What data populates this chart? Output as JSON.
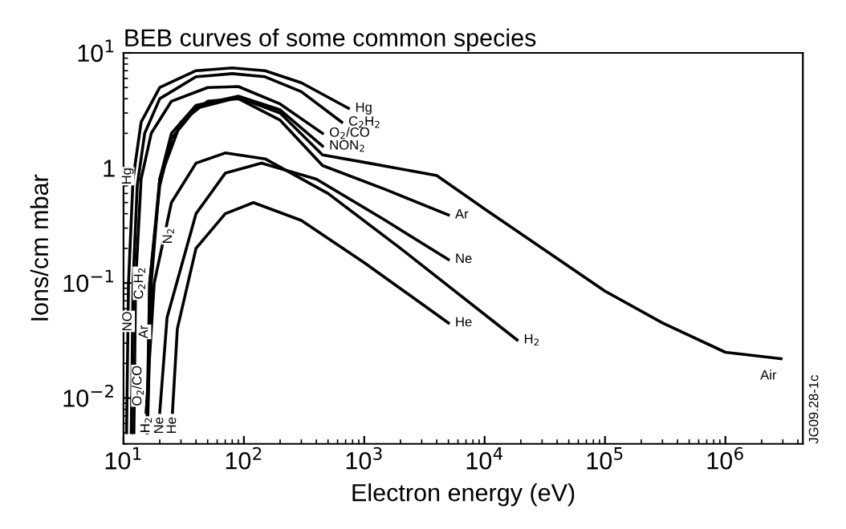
{
  "chart_data": {
    "type": "line",
    "title": "BEB curves of some common species",
    "xlabel": "Electron energy (eV)",
    "ylabel": "Ions/cm mbar",
    "log": "xy",
    "grid": false,
    "legend": false,
    "xlim": [
      10,
      4400000
    ],
    "ylim": [
      0.004,
      10
    ],
    "xticks": [
      {
        "value": 10,
        "label": "10$^{1}$"
      },
      {
        "value": 100,
        "label": "10$^{2}$"
      },
      {
        "value": 1000,
        "label": "10$^{3}$"
      },
      {
        "value": 10000,
        "label": "10$^{4}$"
      },
      {
        "value": 100000,
        "label": "10$^{5}$"
      },
      {
        "value": 1000000,
        "label": "10$^{6}$"
      }
    ],
    "yticks": [
      {
        "value": 0.01,
        "label": "10$^{−2}$"
      },
      {
        "value": 0.1,
        "label": "10$^{−1}$"
      },
      1,
      {
        "value": 10,
        "label": "10$^{1}$"
      }
    ],
    "series": [
      {
        "name": "Hg",
        "color": "#000000",
        "x": [
          10.6,
          11,
          12,
          14,
          20,
          40,
          80,
          150,
          300,
          740
        ],
        "values": [
          0.005,
          0.1,
          0.8,
          2.5,
          5,
          7,
          7.4,
          7,
          5.5,
          3.3
        ]
      },
      {
        "name": "C$_{2}$H$_{2}$",
        "color": "#000000",
        "x": [
          11.6,
          12,
          13,
          15,
          20,
          40,
          80,
          150,
          300,
          650
        ],
        "values": [
          0.005,
          0.1,
          0.7,
          2,
          4,
          6.2,
          6.6,
          6.2,
          4.6,
          2.5
        ]
      },
      {
        "name": "O$_{2}$/CO",
        "color": "#000000",
        "x": [
          12.2,
          12.6,
          14,
          17,
          25,
          50,
          90,
          200,
          450
        ],
        "values": [
          0.005,
          0.1,
          0.8,
          2,
          3.8,
          5,
          5.1,
          3.6,
          2
        ]
      },
      {
        "name": "NON$_{2}$",
        "color": "#000000",
        "x": [
          15.8,
          16.5,
          20,
          25,
          40,
          90,
          200,
          450
        ],
        "values": [
          0.005,
          0.1,
          0.8,
          2,
          3.5,
          4.2,
          3.2,
          1.55
        ]
      },
      {
        "name": "Air",
        "color": "#000000",
        "x": [
          15.6,
          16.5,
          20,
          25,
          40,
          90,
          200,
          450,
          1100,
          4000,
          10000,
          100000,
          300000,
          1000000,
          2900000
        ],
        "values": [
          0.005,
          0.1,
          0.7,
          1.8,
          3.3,
          4.1,
          3,
          1.3,
          1.1,
          0.86,
          0.44,
          0.085,
          0.045,
          0.025,
          0.022
        ]
      },
      {
        "name": "Ar",
        "color": "#000000",
        "x": [
          15.8,
          17,
          20,
          30,
          50,
          90,
          200,
          450,
          1500,
          5000
        ],
        "values": [
          0.005,
          0.1,
          0.8,
          2.5,
          3.8,
          4,
          2.6,
          1.05,
          0.65,
          0.39
        ]
      },
      {
        "name": "H$_{2}$",
        "color": "#000000",
        "x": [
          15.4,
          18,
          25,
          40,
          70,
          150,
          500,
          2000,
          18600
        ],
        "values": [
          0.0075,
          0.1,
          0.5,
          1.1,
          1.35,
          1.2,
          0.6,
          0.2,
          0.032
        ]
      },
      {
        "name": "Ne",
        "color": "#000000",
        "x": [
          20,
          23,
          40,
          70,
          140,
          400,
          1500,
          5000
        ],
        "values": [
          0.0075,
          0.05,
          0.4,
          0.9,
          1.1,
          0.8,
          0.35,
          0.16
        ]
      },
      {
        "name": "He",
        "color": "#000000",
        "x": [
          25.5,
          28,
          40,
          70,
          120,
          300,
          1000,
          5000
        ],
        "values": [
          0.0075,
          0.04,
          0.2,
          0.4,
          0.5,
          0.35,
          0.15,
          0.045
        ]
      }
    ],
    "annotations": [
      {
        "text": "Hg",
        "x": 10.8,
        "y": 1.1
      },
      {
        "text": "N$_{2}$",
        "x": 23.6,
        "y": 0.33
      },
      {
        "text": "NO",
        "x": 10.9,
        "y": 0.062
      },
      {
        "text": "C$_{2}$H$_{2}$",
        "x": 13.6,
        "y": 0.15
      },
      {
        "text": "Ar",
        "x": 14.9,
        "y": 0.047
      },
      {
        "text": "O$_{2}$/CO",
        "x": 13.2,
        "y": 0.021
      },
      {
        "text": "H$_{2}$",
        "x": 15.4,
        "y": 0.0075
      },
      {
        "text": "Ne",
        "x": 20,
        "y": 0.0075
      },
      {
        "text": "He",
        "x": 25.5,
        "y": 0.0075
      },
      "JG09.28-1c"
    ]
  }
}
